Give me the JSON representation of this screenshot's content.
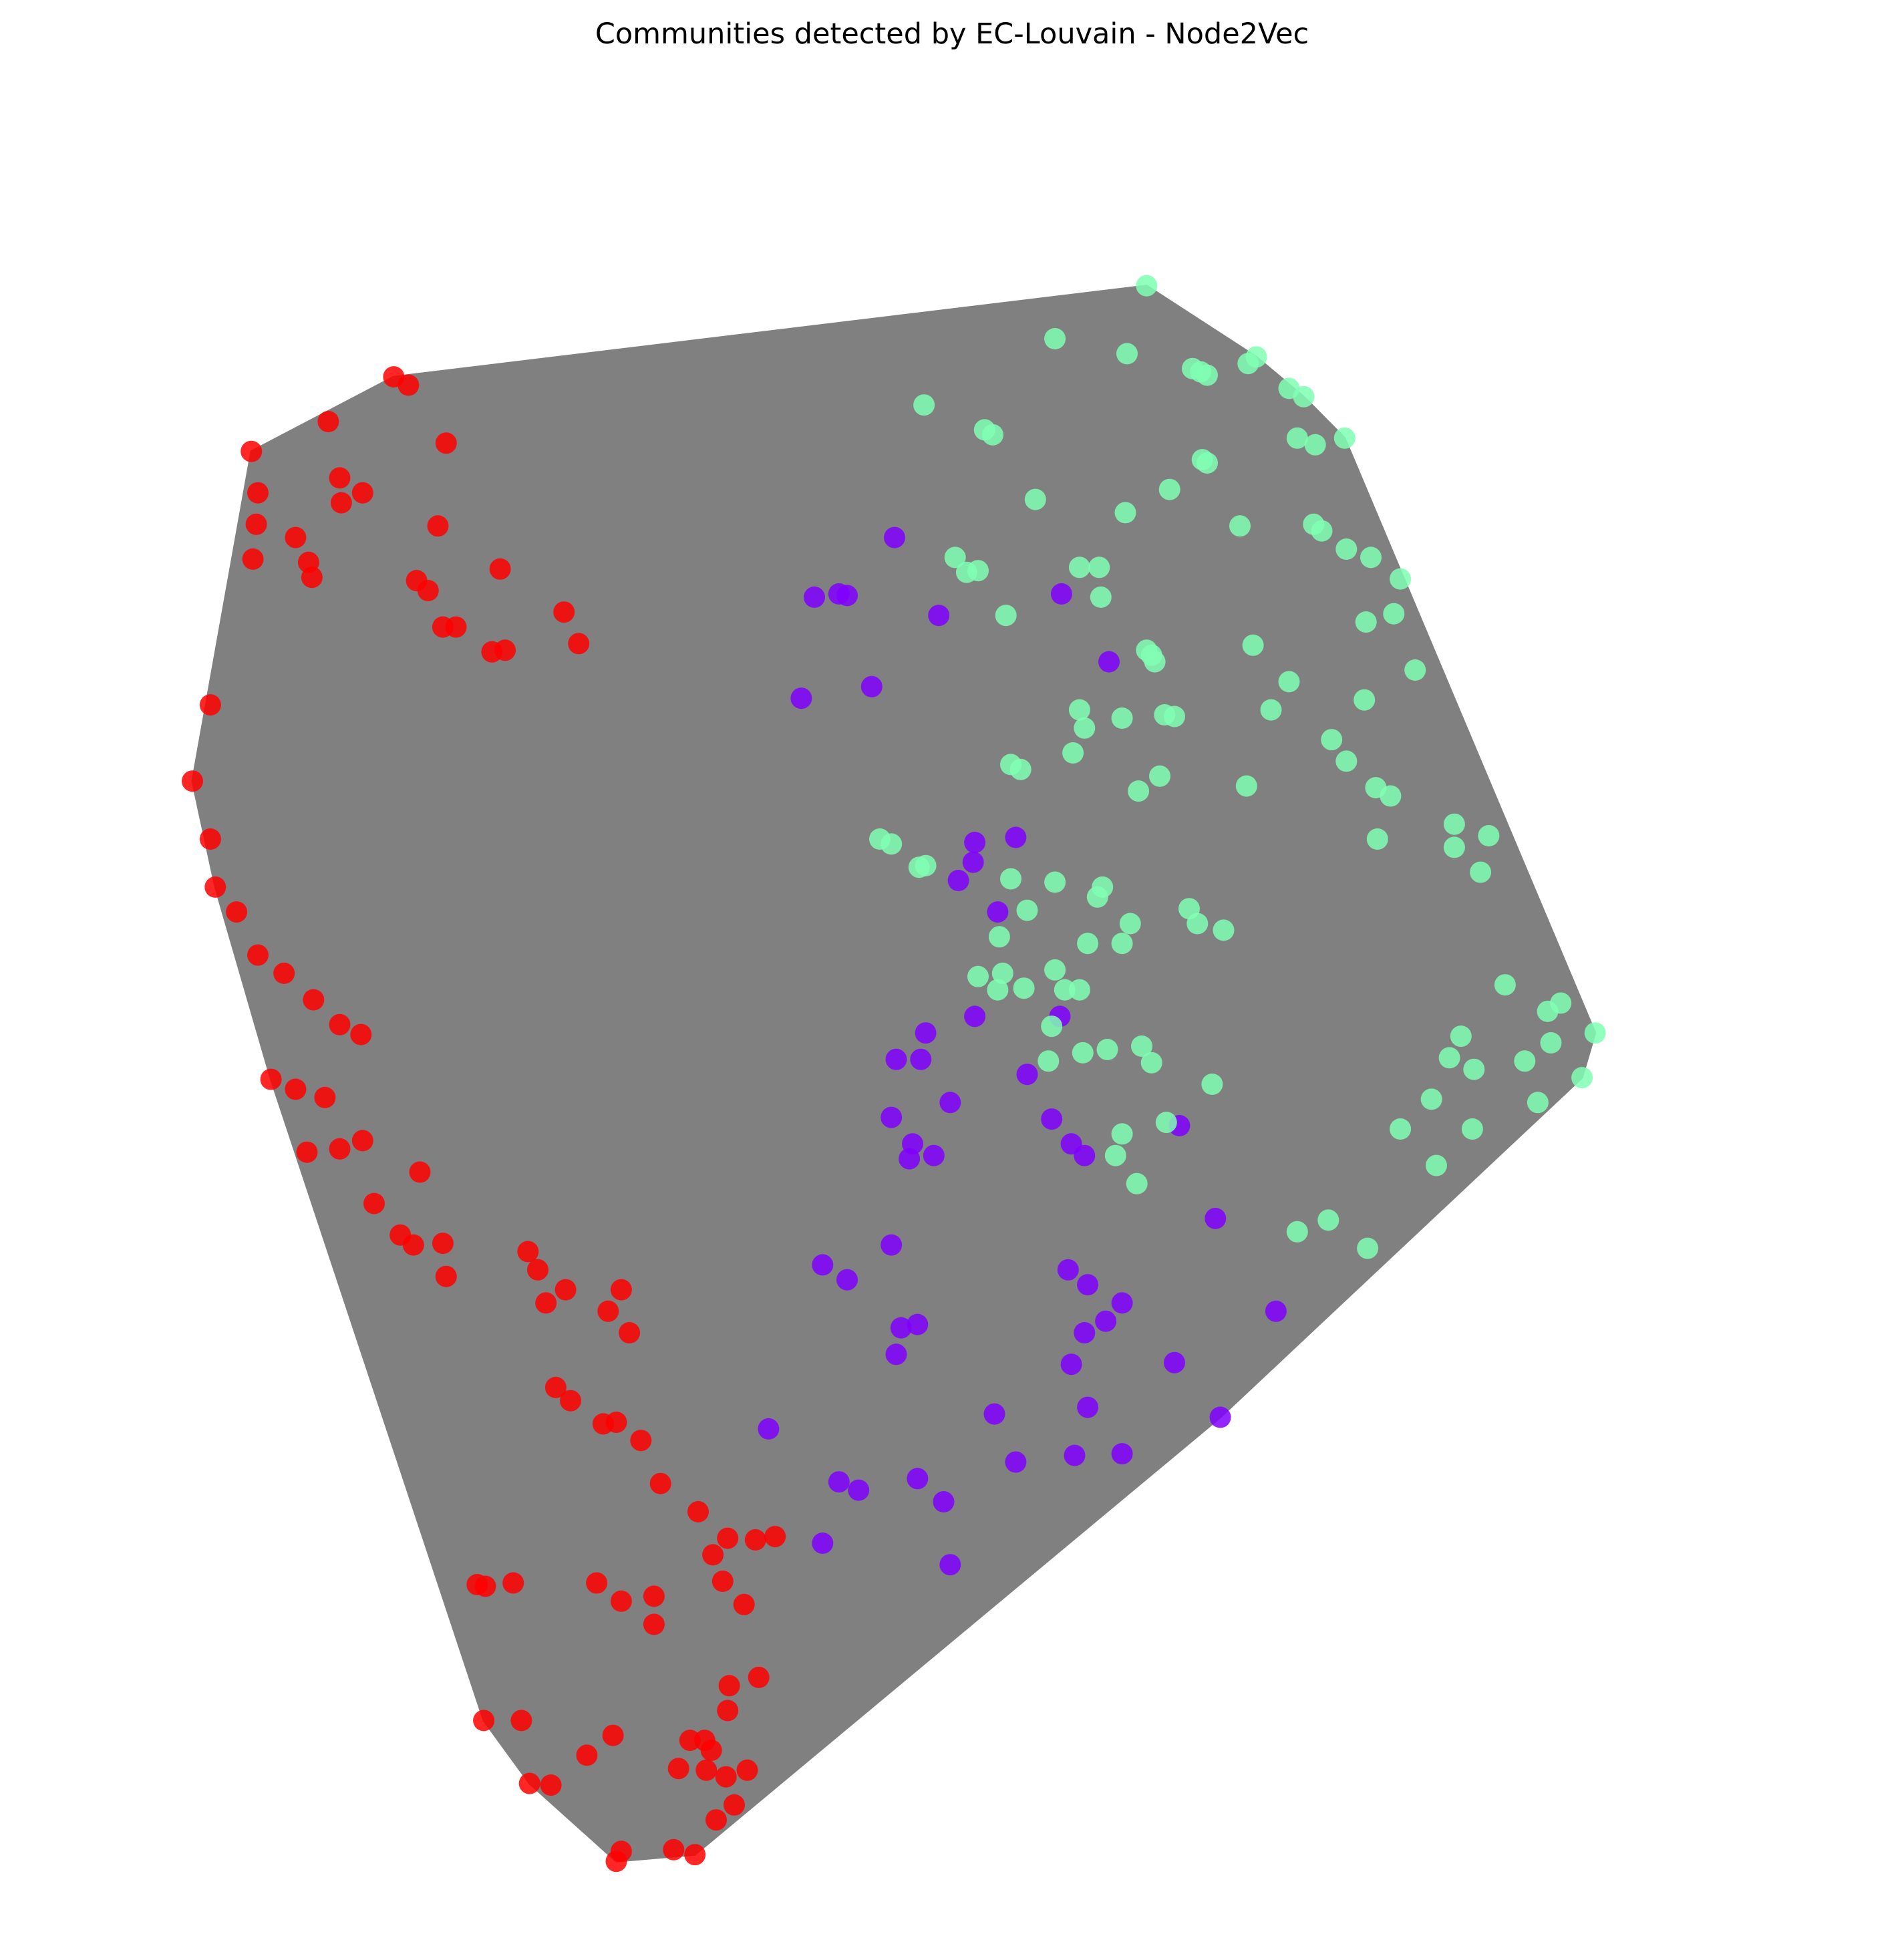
{
  "title": "Communities detected by EC-Louvain - Node2Vec",
  "colors": {
    "edge": "#808080",
    "community_0": "#8000ff",
    "community_1": "#80ffb4",
    "community_2": "#ff0000"
  },
  "graph": {
    "communities": [
      {
        "id": 0,
        "color_key": "community_0"
      },
      {
        "id": 1,
        "color_key": "community_1"
      },
      {
        "id": 2,
        "color_key": "community_2"
      }
    ],
    "nodes": [
      [
        0,
        0.469,
        0.268
      ],
      [
        0,
        0.496,
        0.315
      ],
      [
        0,
        0.435,
        0.302
      ],
      [
        0,
        0.44,
        0.303
      ],
      [
        0,
        0.42,
        0.304
      ],
      [
        0,
        0.571,
        0.302
      ],
      [
        0,
        0.6,
        0.343
      ],
      [
        0,
        0.455,
        0.358
      ],
      [
        0,
        0.412,
        0.365
      ],
      [
        0,
        0.518,
        0.452
      ],
      [
        0,
        0.543,
        0.449
      ],
      [
        0,
        0.517,
        0.464
      ],
      [
        0,
        0.508,
        0.475
      ],
      [
        0,
        0.532,
        0.494
      ],
      [
        0,
        0.518,
        0.557
      ],
      [
        0,
        0.57,
        0.557
      ],
      [
        0,
        0.488,
        0.567
      ],
      [
        0,
        0.47,
        0.583
      ],
      [
        0,
        0.485,
        0.583
      ],
      [
        0,
        0.55,
        0.592
      ],
      [
        0,
        0.565,
        0.619
      ],
      [
        0,
        0.577,
        0.634
      ],
      [
        0,
        0.585,
        0.641
      ],
      [
        0,
        0.643,
        0.623
      ],
      [
        0,
        0.467,
        0.618
      ],
      [
        0,
        0.503,
        0.609
      ],
      [
        0,
        0.48,
        0.634
      ],
      [
        0,
        0.493,
        0.641
      ],
      [
        0,
        0.478,
        0.643
      ],
      [
        0,
        0.665,
        0.679
      ],
      [
        0,
        0.425,
        0.707
      ],
      [
        0,
        0.44,
        0.716
      ],
      [
        0,
        0.467,
        0.695
      ],
      [
        0,
        0.575,
        0.71
      ],
      [
        0,
        0.587,
        0.719
      ],
      [
        0,
        0.473,
        0.745
      ],
      [
        0,
        0.483,
        0.743
      ],
      [
        0,
        0.585,
        0.748
      ],
      [
        0,
        0.598,
        0.741
      ],
      [
        0,
        0.608,
        0.73
      ],
      [
        0,
        0.47,
        0.761
      ],
      [
        0,
        0.702,
        0.735
      ],
      [
        0,
        0.64,
        0.766
      ],
      [
        0,
        0.577,
        0.767
      ],
      [
        0,
        0.587,
        0.793
      ],
      [
        0,
        0.53,
        0.797
      ],
      [
        0,
        0.392,
        0.806
      ],
      [
        0,
        0.668,
        0.799
      ],
      [
        0,
        0.579,
        0.822
      ],
      [
        0,
        0.608,
        0.821
      ],
      [
        0,
        0.543,
        0.826
      ],
      [
        0,
        0.435,
        0.838
      ],
      [
        0,
        0.447,
        0.843
      ],
      [
        0,
        0.483,
        0.836
      ],
      [
        0,
        0.499,
        0.85
      ],
      [
        0,
        0.425,
        0.875
      ],
      [
        0,
        0.503,
        0.888
      ],
      [
        1,
        0.623,
        0.116
      ],
      [
        1,
        0.567,
        0.148
      ],
      [
        1,
        0.611,
        0.157
      ],
      [
        1,
        0.651,
        0.166
      ],
      [
        1,
        0.656,
        0.168
      ],
      [
        1,
        0.66,
        0.17
      ],
      [
        1,
        0.685,
        0.163
      ],
      [
        1,
        0.69,
        0.159
      ],
      [
        1,
        0.71,
        0.178
      ],
      [
        1,
        0.719,
        0.183
      ],
      [
        1,
        0.487,
        0.188
      ],
      [
        1,
        0.524,
        0.203
      ],
      [
        1,
        0.529,
        0.206
      ],
      [
        1,
        0.715,
        0.208
      ],
      [
        1,
        0.726,
        0.212
      ],
      [
        1,
        0.744,
        0.208
      ],
      [
        1,
        0.657,
        0.221
      ],
      [
        1,
        0.66,
        0.223
      ],
      [
        1,
        0.555,
        0.245
      ],
      [
        1,
        0.637,
        0.239
      ],
      [
        1,
        0.61,
        0.253
      ],
      [
        1,
        0.68,
        0.261
      ],
      [
        1,
        0.725,
        0.26
      ],
      [
        1,
        0.73,
        0.264
      ],
      [
        1,
        0.745,
        0.275
      ],
      [
        1,
        0.506,
        0.28
      ],
      [
        1,
        0.513,
        0.289
      ],
      [
        1,
        0.52,
        0.288
      ],
      [
        1,
        0.582,
        0.286
      ],
      [
        1,
        0.594,
        0.286
      ],
      [
        1,
        0.76,
        0.28
      ],
      [
        1,
        0.778,
        0.293
      ],
      [
        1,
        0.595,
        0.304
      ],
      [
        1,
        0.537,
        0.315
      ],
      [
        1,
        0.757,
        0.319
      ],
      [
        1,
        0.774,
        0.314
      ],
      [
        1,
        0.688,
        0.333
      ],
      [
        1,
        0.623,
        0.336
      ],
      [
        1,
        0.626,
        0.339
      ],
      [
        1,
        0.628,
        0.343
      ],
      [
        1,
        0.582,
        0.372
      ],
      [
        1,
        0.699,
        0.372
      ],
      [
        1,
        0.756,
        0.366
      ],
      [
        1,
        0.787,
        0.348
      ],
      [
        1,
        0.608,
        0.377
      ],
      [
        1,
        0.634,
        0.375
      ],
      [
        1,
        0.64,
        0.376
      ],
      [
        1,
        0.585,
        0.383
      ],
      [
        1,
        0.578,
        0.398
      ],
      [
        1,
        0.71,
        0.355
      ],
      [
        1,
        0.736,
        0.39
      ],
      [
        1,
        0.745,
        0.403
      ],
      [
        1,
        0.763,
        0.419
      ],
      [
        1,
        0.772,
        0.424
      ],
      [
        1,
        0.54,
        0.405
      ],
      [
        1,
        0.546,
        0.408
      ],
      [
        1,
        0.631,
        0.412
      ],
      [
        1,
        0.618,
        0.421
      ],
      [
        1,
        0.684,
        0.418
      ],
      [
        1,
        0.764,
        0.45
      ],
      [
        1,
        0.811,
        0.441
      ],
      [
        1,
        0.811,
        0.455
      ],
      [
        1,
        0.832,
        0.448
      ],
      [
        1,
        0.827,
        0.47
      ],
      [
        1,
        0.46,
        0.45
      ],
      [
        1,
        0.467,
        0.453
      ],
      [
        1,
        0.484,
        0.467
      ],
      [
        1,
        0.488,
        0.466
      ],
      [
        1,
        0.596,
        0.479
      ],
      [
        1,
        0.593,
        0.485
      ],
      [
        1,
        0.54,
        0.474
      ],
      [
        1,
        0.567,
        0.476
      ],
      [
        1,
        0.55,
        0.493
      ],
      [
        1,
        0.613,
        0.501
      ],
      [
        1,
        0.649,
        0.492
      ],
      [
        1,
        0.654,
        0.501
      ],
      [
        1,
        0.67,
        0.505
      ],
      [
        1,
        0.533,
        0.509
      ],
      [
        1,
        0.587,
        0.513
      ],
      [
        1,
        0.608,
        0.513
      ],
      [
        1,
        0.52,
        0.533
      ],
      [
        1,
        0.535,
        0.531
      ],
      [
        1,
        0.567,
        0.529
      ],
      [
        1,
        0.532,
        0.541
      ],
      [
        1,
        0.548,
        0.54
      ],
      [
        1,
        0.573,
        0.541
      ],
      [
        1,
        0.582,
        0.541
      ],
      [
        1,
        0.565,
        0.563
      ],
      [
        1,
        0.563,
        0.584
      ],
      [
        1,
        0.584,
        0.579
      ],
      [
        1,
        0.599,
        0.577
      ],
      [
        1,
        0.62,
        0.575
      ],
      [
        1,
        0.626,
        0.585
      ],
      [
        1,
        0.663,
        0.598
      ],
      [
        1,
        0.635,
        0.621
      ],
      [
        1,
        0.608,
        0.628
      ],
      [
        1,
        0.617,
        0.658
      ],
      [
        1,
        0.604,
        0.641
      ],
      [
        1,
        0.715,
        0.687
      ],
      [
        1,
        0.734,
        0.68
      ],
      [
        1,
        0.758,
        0.697
      ],
      [
        1,
        0.797,
        0.607
      ],
      [
        1,
        0.822,
        0.625
      ],
      [
        1,
        0.862,
        0.609
      ],
      [
        1,
        0.889,
        0.594
      ],
      [
        1,
        0.897,
        0.567
      ],
      [
        1,
        0.854,
        0.584
      ],
      [
        1,
        0.876,
        0.549
      ],
      [
        1,
        0.842,
        0.538
      ],
      [
        1,
        0.815,
        0.569
      ],
      [
        1,
        0.823,
        0.589
      ],
      [
        1,
        0.808,
        0.582
      ],
      [
        1,
        0.778,
        0.625
      ],
      [
        1,
        0.8,
        0.647
      ],
      [
        1,
        0.87,
        0.573
      ],
      [
        1,
        0.868,
        0.554
      ],
      [
        2,
        0.163,
        0.171
      ],
      [
        2,
        0.172,
        0.176
      ],
      [
        2,
        0.123,
        0.198
      ],
      [
        2,
        0.195,
        0.211
      ],
      [
        2,
        0.076,
        0.216
      ],
      [
        2,
        0.08,
        0.241
      ],
      [
        2,
        0.079,
        0.26
      ],
      [
        2,
        0.077,
        0.281
      ],
      [
        2,
        0.103,
        0.268
      ],
      [
        2,
        0.13,
        0.232
      ],
      [
        2,
        0.131,
        0.247
      ],
      [
        2,
        0.144,
        0.241
      ],
      [
        2,
        0.111,
        0.283
      ],
      [
        2,
        0.113,
        0.292
      ],
      [
        2,
        0.19,
        0.261
      ],
      [
        2,
        0.177,
        0.294
      ],
      [
        2,
        0.184,
        0.3
      ],
      [
        2,
        0.228,
        0.287
      ],
      [
        2,
        0.223,
        0.337
      ],
      [
        2,
        0.231,
        0.336
      ],
      [
        2,
        0.193,
        0.322
      ],
      [
        2,
        0.201,
        0.322
      ],
      [
        2,
        0.267,
        0.313
      ],
      [
        2,
        0.276,
        0.332
      ],
      [
        2,
        0.051,
        0.369
      ],
      [
        2,
        0.04,
        0.415
      ],
      [
        2,
        0.051,
        0.45
      ],
      [
        2,
        0.054,
        0.479
      ],
      [
        2,
        0.067,
        0.494
      ],
      [
        2,
        0.08,
        0.52
      ],
      [
        2,
        0.096,
        0.531
      ],
      [
        2,
        0.114,
        0.547
      ],
      [
        2,
        0.13,
        0.562
      ],
      [
        2,
        0.143,
        0.568
      ],
      [
        2,
        0.088,
        0.595
      ],
      [
        2,
        0.103,
        0.601
      ],
      [
        2,
        0.121,
        0.606
      ],
      [
        2,
        0.11,
        0.639
      ],
      [
        2,
        0.13,
        0.637
      ],
      [
        2,
        0.144,
        0.632
      ],
      [
        2,
        0.151,
        0.67
      ],
      [
        2,
        0.179,
        0.651
      ],
      [
        2,
        0.167,
        0.689
      ],
      [
        2,
        0.175,
        0.695
      ],
      [
        2,
        0.193,
        0.694
      ],
      [
        2,
        0.195,
        0.714
      ],
      [
        2,
        0.245,
        0.699
      ],
      [
        2,
        0.251,
        0.71
      ],
      [
        2,
        0.256,
        0.73
      ],
      [
        2,
        0.268,
        0.722
      ],
      [
        2,
        0.294,
        0.735
      ],
      [
        2,
        0.302,
        0.722
      ],
      [
        2,
        0.307,
        0.748
      ],
      [
        2,
        0.262,
        0.781
      ],
      [
        2,
        0.271,
        0.789
      ],
      [
        2,
        0.291,
        0.803
      ],
      [
        2,
        0.299,
        0.802
      ],
      [
        2,
        0.314,
        0.813
      ],
      [
        2,
        0.326,
        0.839
      ],
      [
        2,
        0.349,
        0.856
      ],
      [
        2,
        0.367,
        0.872
      ],
      [
        2,
        0.384,
        0.873
      ],
      [
        2,
        0.396,
        0.871
      ],
      [
        2,
        0.358,
        0.882
      ],
      [
        2,
        0.214,
        0.9
      ],
      [
        2,
        0.219,
        0.901
      ],
      [
        2,
        0.236,
        0.899
      ],
      [
        2,
        0.287,
        0.899
      ],
      [
        2,
        0.302,
        0.91
      ],
      [
        2,
        0.322,
        0.907
      ],
      [
        2,
        0.322,
        0.924
      ],
      [
        2,
        0.364,
        0.898
      ],
      [
        2,
        0.377,
        0.912
      ],
      [
        2,
        0.368,
        0.961
      ],
      [
        2,
        0.386,
        0.956
      ],
      [
        2,
        0.367,
        0.976
      ],
      [
        2,
        0.218,
        0.982
      ],
      [
        2,
        0.241,
        0.982
      ],
      [
        2,
        0.297,
        0.991
      ],
      [
        2,
        0.344,
        0.994
      ],
      [
        2,
        0.353,
        0.994
      ],
      [
        2,
        0.357,
        1.0
      ],
      [
        2,
        0.354,
        1.012
      ],
      [
        2,
        0.246,
        1.02
      ],
      [
        2,
        0.259,
        1.021
      ],
      [
        2,
        0.281,
        1.003
      ],
      [
        2,
        0.337,
        1.011
      ],
      [
        2,
        0.366,
        1.016
      ],
      [
        2,
        0.379,
        1.012
      ],
      [
        2,
        0.371,
        1.033
      ],
      [
        2,
        0.36,
        1.042
      ],
      [
        2,
        0.334,
        1.06
      ],
      [
        2,
        0.347,
        1.063
      ],
      [
        2,
        0.302,
        1.061
      ],
      [
        2,
        0.299,
        1.067
      ]
    ]
  }
}
